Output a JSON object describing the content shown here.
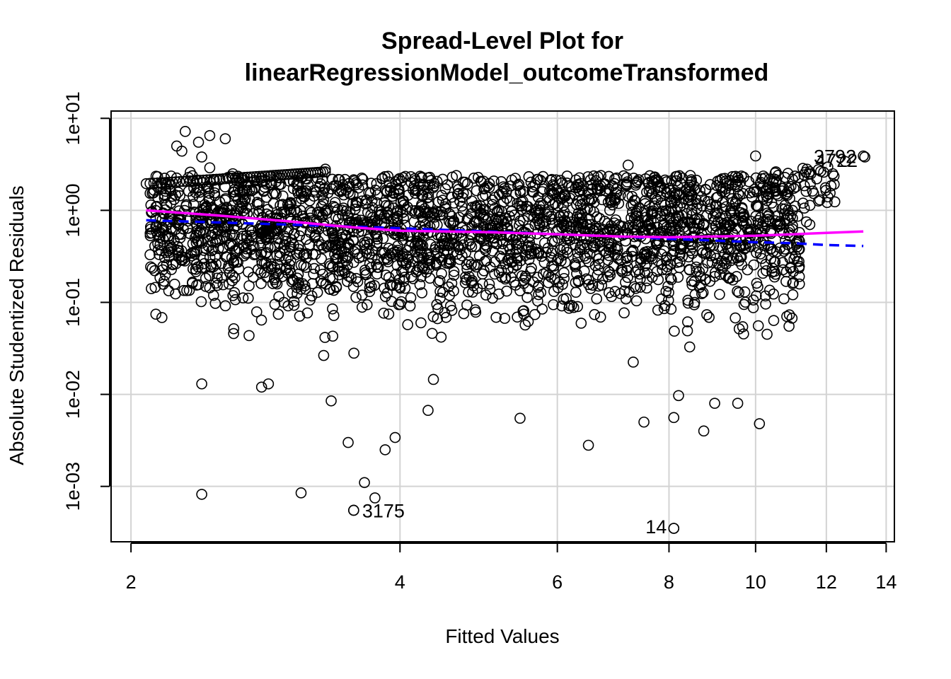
{
  "chart_data": {
    "type": "scatter",
    "title_line1": "Spread-Level Plot for",
    "title_line2": "linearRegressionModel_outcomeTransformed",
    "xlabel": "Fitted Values",
    "ylabel": "Absolute Studentized Residuals",
    "x_scale": "log",
    "y_scale": "log",
    "xlim": [
      1.9,
      14.3
    ],
    "ylim": [
      0.00025,
      12
    ],
    "x_ticks": [
      {
        "value": 2,
        "label": "2"
      },
      {
        "value": 4,
        "label": "4"
      },
      {
        "value": 6,
        "label": "6"
      },
      {
        "value": 8,
        "label": "8"
      },
      {
        "value": 10,
        "label": "10"
      },
      {
        "value": 12,
        "label": "12"
      },
      {
        "value": 14,
        "label": "14"
      }
    ],
    "y_ticks": [
      {
        "value": 0.001,
        "label": "1e-03"
      },
      {
        "value": 0.01,
        "label": "1e-02"
      },
      {
        "value": 0.1,
        "label": "1e-01"
      },
      {
        "value": 1,
        "label": "1e+00"
      },
      {
        "value": 10,
        "label": "1e+01"
      }
    ],
    "grid": true,
    "colors": {
      "points": "#000000",
      "grid": "#d3d3d3",
      "linear_fit": "#0000ff",
      "smooth_fit": "#ff00ff"
    },
    "linear_fit": {
      "style": "dashed",
      "x": [
        2.08,
        3,
        4,
        5,
        6,
        7,
        8,
        9,
        10,
        11,
        12,
        13.2
      ],
      "y": [
        0.78,
        0.7,
        0.64,
        0.59,
        0.55,
        0.52,
        0.49,
        0.47,
        0.45,
        0.44,
        0.42,
        0.41
      ]
    },
    "smooth_fit": {
      "style": "solid",
      "x": [
        2.08,
        2.5,
        3,
        3.5,
        4,
        5,
        6,
        7,
        8,
        9,
        10,
        11,
        12,
        13.2
      ],
      "y": [
        1.0,
        0.88,
        0.76,
        0.66,
        0.6,
        0.58,
        0.55,
        0.52,
        0.51,
        0.52,
        0.53,
        0.55,
        0.57,
        0.59
      ]
    },
    "labeled_points": [
      {
        "label": "3175",
        "x": 3.55,
        "y": 0.00055
      },
      {
        "label": "14",
        "x": 8.1,
        "y": 0.00035
      },
      {
        "label": "3792",
        "x": 13.2,
        "y": 3.9
      },
      {
        "label": "4722",
        "x": 13.25,
        "y": 3.8
      }
    ],
    "notable_points": [
      [
        2.3,
        7.2
      ],
      [
        2.45,
        6.5
      ],
      [
        2.55,
        6.0
      ],
      [
        2.38,
        5.5
      ],
      [
        2.25,
        5.0
      ],
      [
        2.28,
        4.4
      ],
      [
        2.4,
        3.8
      ],
      [
        2.33,
        2.6
      ],
      [
        2.45,
        2.9
      ],
      [
        2.6,
        2.5
      ],
      [
        3.3,
        2.8
      ],
      [
        2.4,
        0.00082
      ],
      [
        3.1,
        0.00085
      ],
      [
        3.55,
        0.00055
      ],
      [
        3.75,
        0.00075
      ],
      [
        8.1,
        0.00035
      ],
      [
        2.4,
        0.013
      ],
      [
        2.8,
        0.012
      ],
      [
        2.85,
        0.013
      ],
      [
        3.35,
        0.0085
      ],
      [
        3.5,
        0.003
      ],
      [
        3.85,
        0.0025
      ],
      [
        3.95,
        0.0034
      ],
      [
        4.3,
        0.0067
      ],
      [
        5.45,
        0.0055
      ],
      [
        6.5,
        0.0028
      ],
      [
        7.5,
        0.005
      ],
      [
        8.1,
        0.0056
      ],
      [
        8.2,
        0.0097
      ],
      [
        8.75,
        0.004
      ],
      [
        9.0,
        0.008
      ],
      [
        9.55,
        0.008
      ],
      [
        10.1,
        0.0048
      ],
      [
        3.65,
        0.0011
      ],
      [
        10.0,
        3.9
      ],
      [
        12.2,
        2.5
      ],
      [
        12.6,
        3.4
      ],
      [
        11.4,
        0.75
      ],
      [
        11.5,
        0.7
      ],
      [
        11.0,
        0.16
      ],
      [
        10.9,
        0.055
      ],
      [
        10.3,
        0.045
      ],
      [
        7.2,
        3.1
      ],
      [
        11.8,
        1.3
      ]
    ]
  }
}
